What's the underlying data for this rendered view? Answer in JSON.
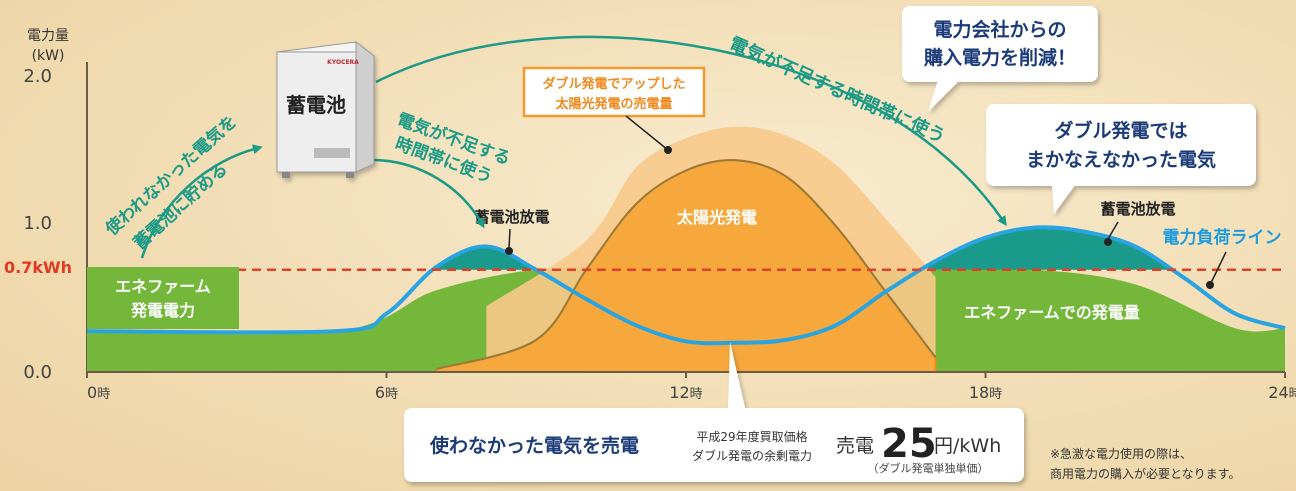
{
  "chart_data": {
    "type": "area",
    "ylabel": "電力量",
    "yunit": "(kW)",
    "ylim": [
      0.0,
      2.0
    ],
    "yticks": [
      "0.0",
      "1.0",
      "2.0"
    ],
    "threshold": {
      "value": 0.7,
      "label": "0.7kWh"
    },
    "xticks": [
      {
        "value": 0,
        "num": "0",
        "unit": "時"
      },
      {
        "value": 6,
        "num": "6",
        "unit": "時"
      },
      {
        "value": 12,
        "num": "12",
        "unit": "時"
      },
      {
        "value": 18,
        "num": "18",
        "unit": "時"
      },
      {
        "value": 24,
        "num": "24",
        "unit": "時"
      }
    ],
    "series": [
      {
        "name": "エネファームでの発電量",
        "color": "#74b73a",
        "x": [
          0,
          5,
          7,
          9,
          11,
          13,
          15,
          17,
          19,
          21,
          23,
          24
        ],
        "y": [
          0.28,
          0.28,
          0.56,
          0.7,
          0.7,
          0.7,
          0.7,
          0.7,
          0.7,
          0.6,
          0.3,
          0.3
        ]
      },
      {
        "name": "蓄電池放電",
        "color": "#1a9a8a",
        "x": [
          6,
          7,
          8,
          9,
          10
        ],
        "y": [
          0.3,
          0.72,
          0.86,
          0.8,
          0.7
        ]
      },
      {
        "name": "太陽光発電",
        "color": "#f7a83c",
        "x": [
          7,
          9,
          10,
          11,
          12,
          13,
          14,
          15,
          16,
          17
        ],
        "y": [
          0.02,
          0.22,
          0.7,
          1.15,
          1.38,
          1.45,
          1.34,
          1.0,
          0.55,
          0.1
        ]
      },
      {
        "name": "ダブル発電でアップした太陽光発電の売電量",
        "color": "#f8c98b",
        "x": [
          8,
          10,
          11,
          12,
          13,
          14,
          15,
          16,
          17
        ],
        "y": [
          0.45,
          0.9,
          1.4,
          1.6,
          1.68,
          1.62,
          1.42,
          1.05,
          0.65
        ]
      },
      {
        "name": "電力負荷ライン",
        "color": "#2aa4e0",
        "x": [
          0,
          5,
          6,
          7,
          8,
          9,
          10,
          11,
          12,
          13,
          14,
          15,
          16,
          17,
          18,
          19,
          20,
          21,
          22,
          23,
          24
        ],
        "y": [
          0.28,
          0.28,
          0.4,
          0.72,
          0.86,
          0.7,
          0.5,
          0.32,
          0.21,
          0.2,
          0.22,
          0.32,
          0.55,
          0.76,
          0.92,
          0.99,
          0.96,
          0.86,
          0.64,
          0.4,
          0.3
        ]
      }
    ],
    "annotations": {
      "enefarm_label": [
        "エネファーム",
        "発電電力"
      ],
      "battery_discharge": "蓄電池放電",
      "solar_label": "太陽光発電",
      "enefarm_output": "エネファームでの発電量",
      "load_line": "電力負荷ライン",
      "battery_device": "蓄電池",
      "kyocera_mark": "KYOCERA",
      "arrow_store": [
        "使われなかった電気を",
        "蓄電池に貯める"
      ],
      "arrow_use_short": [
        "電気が不足する",
        "時間帯に使う"
      ],
      "arrow_use_long": "電気が不足する時間帯に使う",
      "double_up_box": [
        "ダブル発電でアップした",
        "太陽光発電の売電量"
      ],
      "reduce_box": [
        "電力会社からの",
        "購入電力を削減！"
      ],
      "shortfall_box": [
        "ダブル発電では",
        "まかなえなかった電気"
      ],
      "sell_box": {
        "title": "使わなかった電気を売電",
        "desc": [
          "平成29年度買取価格",
          "ダブル発電の余剰電力"
        ],
        "price_prefix": "売電",
        "price": "25",
        "price_unit": "円/kWh",
        "price_note": "（ダブル発電単独単価）"
      },
      "footnote": [
        "※急激な電力使用の際は、",
        "商用電力の購入が必要となります。"
      ]
    }
  }
}
